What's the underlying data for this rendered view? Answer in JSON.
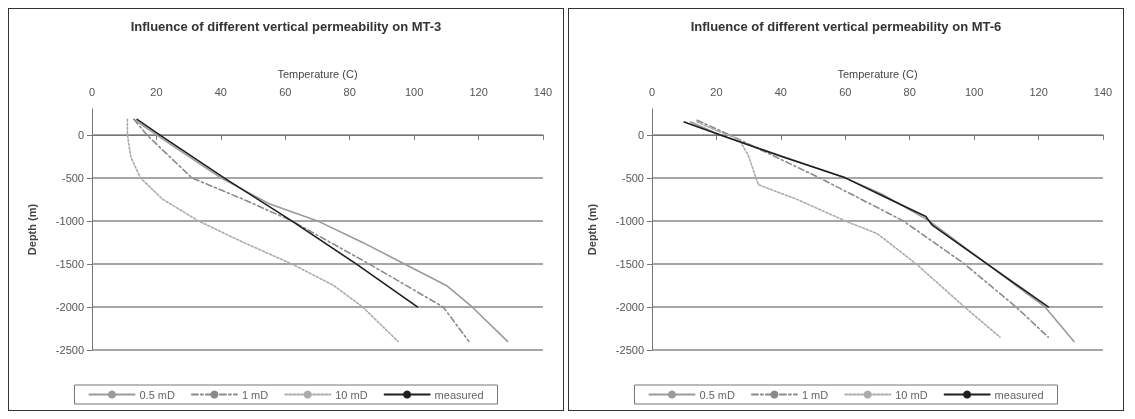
{
  "chart_data": [
    {
      "type": "line",
      "title": "Influence of different vertical permeability on MT-3",
      "xlabel": "Temperature (C)",
      "ylabel": "Depth (m)",
      "xlim": [
        0,
        140
      ],
      "xticks": [
        0,
        20,
        40,
        60,
        80,
        100,
        120,
        140
      ],
      "ylim": [
        -2500,
        300
      ],
      "yticks": [
        -2500,
        -2000,
        -1500,
        -1000,
        -500,
        0
      ],
      "grid": "y",
      "legend": "bottom",
      "marker": "none",
      "series": [
        {
          "name": "0.5 mD",
          "color": "#9a9a9a",
          "line_style": "solid",
          "x": [
            13,
            20,
            40,
            55,
            70,
            84,
            97,
            110,
            118,
            129
          ],
          "values": [
            180,
            0,
            -500,
            -800,
            -1000,
            -1250,
            -1500,
            -1750,
            -2000,
            -2400
          ]
        },
        {
          "name": "1 mD",
          "color": "#8a8a8a",
          "line_style": "dashed",
          "x": [
            13,
            17,
            31,
            47,
            62,
            86,
            109,
            117
          ],
          "values": [
            180,
            0,
            -500,
            -750,
            -1000,
            -1500,
            -2000,
            -2400
          ]
        },
        {
          "name": "10 mD",
          "color": "#aaaaaa",
          "line_style": "dotted",
          "x": [
            11,
            11,
            12,
            15,
            22,
            33,
            47,
            62,
            75,
            84,
            95
          ],
          "values": [
            180,
            0,
            -250,
            -500,
            -750,
            -1000,
            -1250,
            -1500,
            -1750,
            -2000,
            -2400
          ]
        },
        {
          "name": "measured",
          "color": "#1e1e1e",
          "line_style": "solid",
          "x": [
            14,
            21,
            41,
            62,
            82,
            101
          ],
          "values": [
            180,
            0,
            -500,
            -1000,
            -1500,
            -2000
          ]
        }
      ]
    },
    {
      "type": "line",
      "title": "Influence of different vertical permeability on MT-6",
      "xlabel": "Temperature (C)",
      "ylabel": "Depth (m)",
      "xlim": [
        0,
        140
      ],
      "xticks": [
        0,
        20,
        40,
        60,
        80,
        100,
        120,
        140
      ],
      "ylim": [
        -2500,
        300
      ],
      "yticks": [
        -2500,
        -2000,
        -1500,
        -1000,
        -500,
        0
      ],
      "grid": "y",
      "legend": "bottom",
      "marker": "none",
      "series": [
        {
          "name": "0.5 mD",
          "color": "#9a9a9a",
          "line_style": "solid",
          "x": [
            12,
            21,
            60,
            72,
            86,
            104,
            122,
            131
          ],
          "values": [
            150,
            0,
            -500,
            -700,
            -1000,
            -1500,
            -2000,
            -2400
          ]
        },
        {
          "name": "1 mD",
          "color": "#8a8a8a",
          "line_style": "dashed",
          "x": [
            14,
            24,
            52,
            78,
            97,
            113,
            123
          ],
          "values": [
            170,
            0,
            -500,
            -1000,
            -1500,
            -2000,
            -2350
          ]
        },
        {
          "name": "10 mD",
          "color": "#aaaaaa",
          "line_style": "dotted",
          "x": [
            14,
            20,
            27,
            30,
            33,
            45,
            60,
            70,
            82,
            97,
            108
          ],
          "values": [
            150,
            50,
            -50,
            -250,
            -580,
            -750,
            -1000,
            -1150,
            -1500,
            -2000,
            -2350
          ]
        },
        {
          "name": "measured",
          "color": "#1e1e1e",
          "line_style": "solid",
          "x": [
            10,
            21,
            40,
            60,
            71,
            85,
            87,
            104,
            123
          ],
          "values": [
            150,
            0,
            -250,
            -500,
            -700,
            -950,
            -1050,
            -1500,
            -2000
          ]
        }
      ]
    }
  ]
}
